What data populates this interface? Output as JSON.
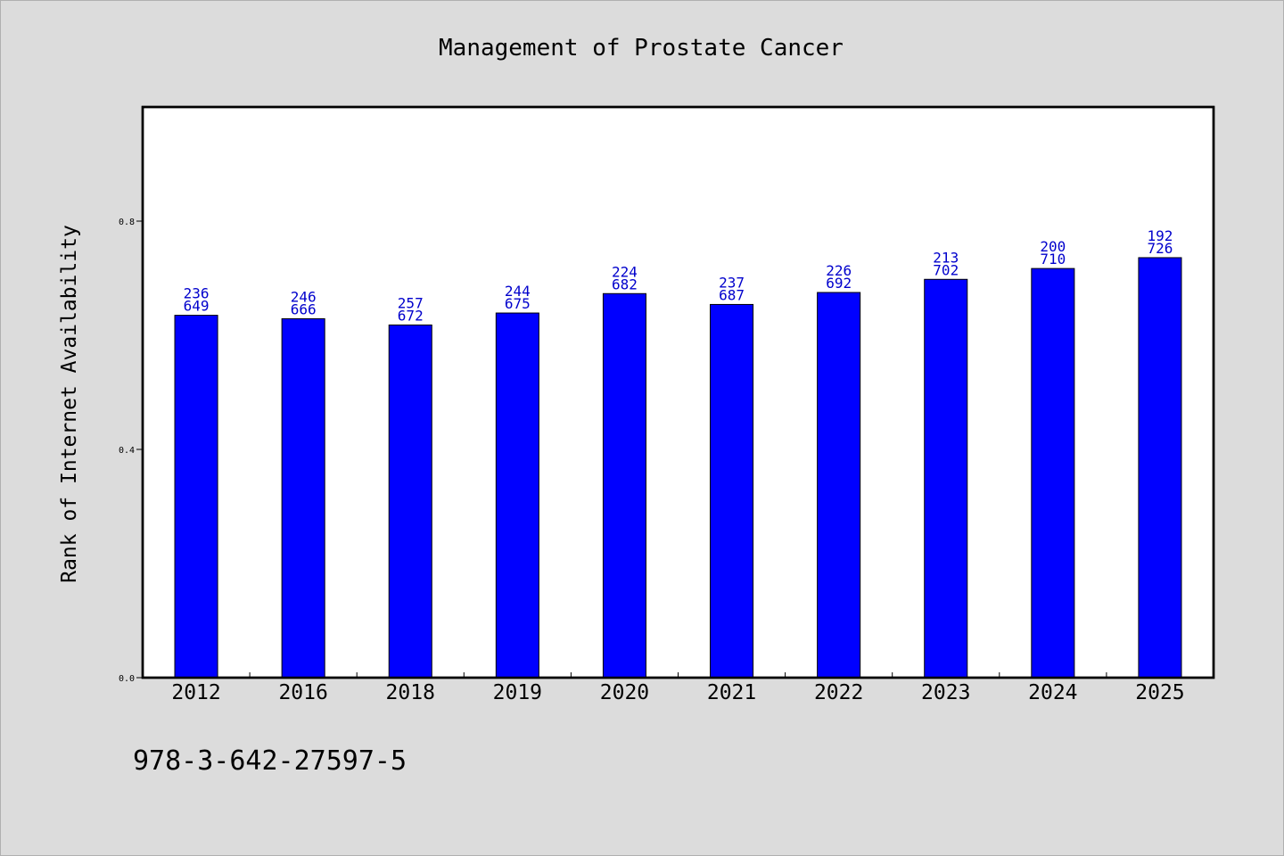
{
  "chart_data": {
    "type": "bar",
    "title": "Management of Prostate Cancer",
    "xlabel": "",
    "ylabel": "Rank of Internet Availability",
    "categories": [
      "2012",
      "2016",
      "2018",
      "2019",
      "2020",
      "2021",
      "2022",
      "2023",
      "2024",
      "2025"
    ],
    "values": [
      0.635,
      0.629,
      0.618,
      0.639,
      0.673,
      0.654,
      0.675,
      0.698,
      0.717,
      0.736
    ],
    "annotations": [
      [
        "236",
        "649"
      ],
      [
        "246",
        "666"
      ],
      [
        "257",
        "672"
      ],
      [
        "244",
        "675"
      ],
      [
        "224",
        "682"
      ],
      [
        "237",
        "687"
      ],
      [
        "226",
        "692"
      ],
      [
        "213",
        "702"
      ],
      [
        "200",
        "710"
      ],
      [
        "192",
        "726"
      ]
    ],
    "ylim": [
      0.0,
      1.0
    ],
    "yticks": [
      "0.0",
      "0.4",
      "0.8"
    ],
    "grid": false,
    "colors": {
      "bar": "#0000ff",
      "bar_edge": "#000000",
      "annotation": "#0000cc",
      "background": "#dcdcdc",
      "plot_background": "#ffffff"
    }
  },
  "footer_text": "978-3-642-27597-5"
}
